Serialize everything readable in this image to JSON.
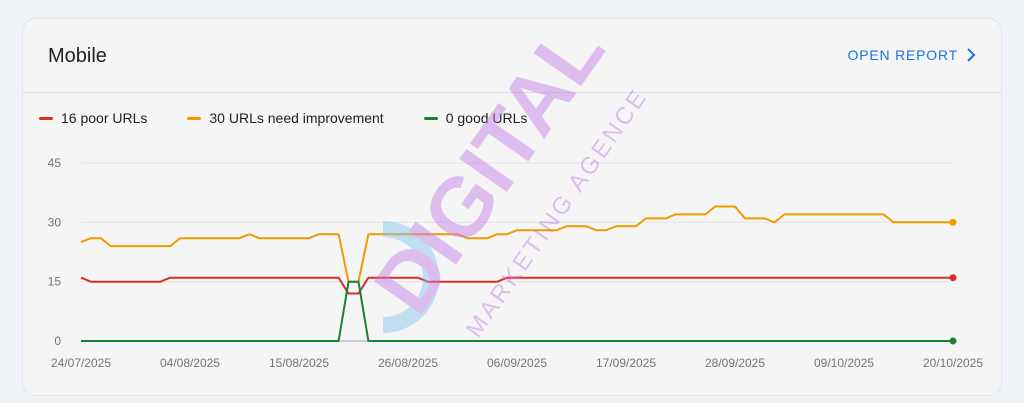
{
  "card": {
    "title": "Mobile",
    "open_report_label": "OPEN REPORT"
  },
  "legend": [
    {
      "label": "16 poor URLs",
      "color": "#d93025"
    },
    {
      "label": "30 URLs need improvement",
      "color": "#f29900"
    },
    {
      "label": "0 good URLs",
      "color": "#188038"
    }
  ],
  "watermark": {
    "line1": "DIGITAL",
    "line2": "MARKETING AGENCE"
  },
  "chart_data": {
    "type": "line",
    "ylim": [
      0,
      45
    ],
    "yticks": [
      "0",
      "15",
      "30",
      "45"
    ],
    "xlim": [
      "2025-07-24",
      "2025-10-20"
    ],
    "xticks": [
      "24/07/2025",
      "04/08/2025",
      "15/08/2025",
      "26/08/2025",
      "06/09/2025",
      "17/09/2025",
      "28/09/2025",
      "09/10/2025",
      "20/10/2025"
    ],
    "series": [
      {
        "name": "16 poor URLs",
        "color": "#d93025",
        "points": [
          [
            "2025-07-24",
            16
          ],
          [
            "2025-07-25",
            15
          ],
          [
            "2025-08-01",
            15
          ],
          [
            "2025-08-02",
            16
          ],
          [
            "2025-08-19",
            16
          ],
          [
            "2025-08-20",
            12
          ],
          [
            "2025-08-21",
            12
          ],
          [
            "2025-08-22",
            16
          ],
          [
            "2025-08-27",
            16
          ],
          [
            "2025-08-28",
            15
          ],
          [
            "2025-09-04",
            15
          ],
          [
            "2025-09-05",
            16
          ],
          [
            "2025-10-20",
            16
          ]
        ]
      },
      {
        "name": "30 URLs need improvement",
        "color": "#f29900",
        "points": [
          [
            "2025-07-24",
            25
          ],
          [
            "2025-07-25",
            26
          ],
          [
            "2025-07-26",
            26
          ],
          [
            "2025-07-27",
            24
          ],
          [
            "2025-08-02",
            24
          ],
          [
            "2025-08-03",
            26
          ],
          [
            "2025-08-09",
            26
          ],
          [
            "2025-08-10",
            27
          ],
          [
            "2025-08-11",
            26
          ],
          [
            "2025-08-16",
            26
          ],
          [
            "2025-08-17",
            27
          ],
          [
            "2025-08-19",
            27
          ],
          [
            "2025-08-20",
            15
          ],
          [
            "2025-08-21",
            15
          ],
          [
            "2025-08-22",
            27
          ],
          [
            "2025-08-31",
            27
          ],
          [
            "2025-09-01",
            26
          ],
          [
            "2025-09-03",
            26
          ],
          [
            "2025-09-04",
            27
          ],
          [
            "2025-09-05",
            27
          ],
          [
            "2025-09-06",
            28
          ],
          [
            "2025-09-10",
            28
          ],
          [
            "2025-09-11",
            29
          ],
          [
            "2025-09-13",
            29
          ],
          [
            "2025-09-14",
            28
          ],
          [
            "2025-09-15",
            28
          ],
          [
            "2025-09-16",
            29
          ],
          [
            "2025-09-18",
            29
          ],
          [
            "2025-09-19",
            31
          ],
          [
            "2025-09-21",
            31
          ],
          [
            "2025-09-22",
            32
          ],
          [
            "2025-09-25",
            32
          ],
          [
            "2025-09-26",
            34
          ],
          [
            "2025-09-28",
            34
          ],
          [
            "2025-09-29",
            31
          ],
          [
            "2025-10-01",
            31
          ],
          [
            "2025-10-02",
            30
          ],
          [
            "2025-10-03",
            32
          ],
          [
            "2025-10-13",
            32
          ],
          [
            "2025-10-14",
            30
          ],
          [
            "2025-10-20",
            30
          ]
        ]
      },
      {
        "name": "0 good URLs",
        "color": "#188038",
        "points": [
          [
            "2025-07-24",
            0
          ],
          [
            "2025-08-19",
            0
          ],
          [
            "2025-08-20",
            15
          ],
          [
            "2025-08-21",
            15
          ],
          [
            "2025-08-22",
            0
          ],
          [
            "2025-10-20",
            0
          ]
        ]
      }
    ],
    "grid": true,
    "legend_position": "top-left"
  }
}
